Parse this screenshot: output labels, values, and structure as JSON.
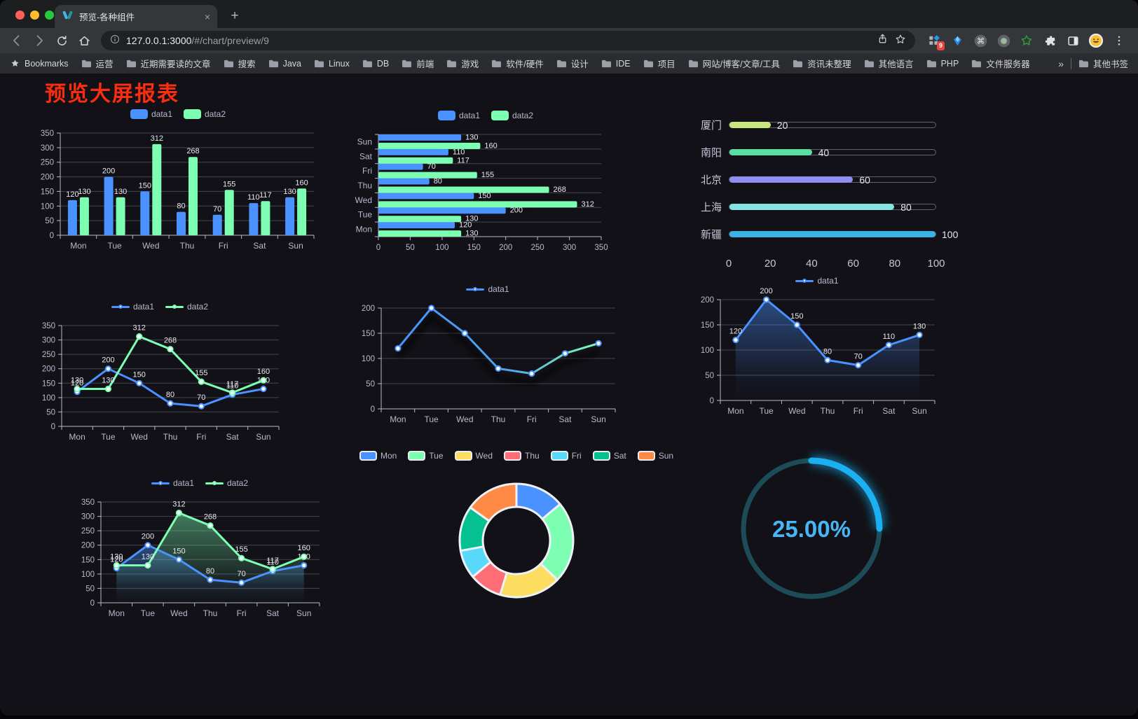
{
  "browser": {
    "traffic_lights": {
      "close": "#ff5f57",
      "minimize": "#febc2e",
      "zoom": "#28c840"
    },
    "tab": {
      "title": "预览-各种组件",
      "close_label": "×",
      "new_tab_label": "+"
    },
    "address": {
      "url_host": "127.0.0.1:3000",
      "url_path": "/#/chart/preview/9"
    },
    "extensions_badge": "9",
    "icons": [
      "back",
      "forward",
      "reload",
      "home",
      "info",
      "share",
      "bookmark-star",
      "extensions-grid",
      "gem",
      "command",
      "screen-record",
      "green-star",
      "puzzle",
      "side-panel",
      "emoji-avatar",
      "menu-dots"
    ],
    "bookmarks_bar": {
      "root_label": "Bookmarks",
      "folders": [
        "运营",
        "近期需要读的文章",
        "搜索",
        "Java",
        "Linux",
        "DB",
        "前端",
        "游戏",
        "软件/硬件",
        "设计",
        "IDE",
        "项目",
        "网站/博客/文章/工具",
        "资讯未整理",
        "其他语言",
        "PHP",
        "文件服务器"
      ],
      "overflow_chevron": "»",
      "other_bookmarks": "其他书签"
    }
  },
  "page": {
    "title": "预览大屏报表",
    "title_color": "#f92d10",
    "background": "#121117"
  },
  "chart_data": [
    {
      "id": "grouped-bar",
      "type": "bar",
      "legend_position": "top",
      "grid": true,
      "value_labels": true,
      "categories": [
        "Mon",
        "Tue",
        "Wed",
        "Thu",
        "Fri",
        "Sat",
        "Sun"
      ],
      "series": [
        {
          "name": "data1",
          "color": "#4992ff",
          "values": [
            120,
            200,
            150,
            80,
            70,
            110,
            130
          ]
        },
        {
          "name": "data2",
          "color": "#7cffb2",
          "values": [
            130,
            130,
            312,
            268,
            155,
            117,
            160
          ]
        }
      ],
      "ylim": [
        0,
        350
      ],
      "yticks": [
        0,
        50,
        100,
        150,
        200,
        250,
        300,
        350
      ]
    },
    {
      "id": "grouped-bar-horizontal",
      "type": "bar-horizontal",
      "legend_position": "top",
      "value_labels": true,
      "categories": [
        "Mon",
        "Tue",
        "Wed",
        "Thu",
        "Fri",
        "Sat",
        "Sun"
      ],
      "series": [
        {
          "name": "data1",
          "color": "#4992ff",
          "values": [
            120,
            200,
            150,
            80,
            70,
            110,
            130
          ]
        },
        {
          "name": "data2",
          "color": "#7cffb2",
          "values": [
            130,
            130,
            312,
            268,
            155,
            117,
            160
          ]
        }
      ],
      "xlim": [
        0,
        350
      ],
      "xticks": [
        0,
        50,
        100,
        150,
        200,
        250,
        300,
        350
      ]
    },
    {
      "id": "city-progress",
      "type": "progress-bars",
      "max": 100,
      "xticks": [
        0,
        20,
        40,
        60,
        80,
        100
      ],
      "rows": [
        {
          "label": "厦门",
          "value": 20,
          "color": "#c8e87f"
        },
        {
          "label": "南阳",
          "value": 40,
          "color": "#58dfa2"
        },
        {
          "label": "北京",
          "value": 60,
          "color": "#918ef1"
        },
        {
          "label": "上海",
          "value": 80,
          "color": "#83e4e2"
        },
        {
          "label": "新疆",
          "value": 100,
          "color": "#3cb1e8"
        }
      ]
    },
    {
      "id": "double-line",
      "type": "line",
      "legend_position": "top",
      "value_labels": true,
      "categories": [
        "Mon",
        "Tue",
        "Wed",
        "Thu",
        "Fri",
        "Sat",
        "Sun"
      ],
      "series": [
        {
          "name": "data1",
          "color": "#4992ff",
          "values": [
            120,
            200,
            150,
            80,
            70,
            110,
            130
          ]
        },
        {
          "name": "data2",
          "color": "#7cffb2",
          "values": [
            130,
            130,
            312,
            268,
            155,
            117,
            160
          ]
        }
      ],
      "ylim": [
        0,
        350
      ],
      "yticks": [
        0,
        50,
        100,
        150,
        200,
        250,
        300,
        350
      ]
    },
    {
      "id": "gradient-line",
      "type": "line-gradient",
      "legend_position": "top",
      "value_labels": false,
      "categories": [
        "Mon",
        "Tue",
        "Wed",
        "Thu",
        "Fri",
        "Sat",
        "Sun"
      ],
      "series": [
        {
          "name": "data1",
          "values": [
            120,
            200,
            150,
            80,
            70,
            110,
            130
          ]
        }
      ],
      "gradient": [
        "#4992ff",
        "#7cffb2"
      ],
      "marker_color": "#4992ff",
      "ylim": [
        0,
        200
      ],
      "yticks": [
        0,
        50,
        100,
        150,
        200
      ]
    },
    {
      "id": "area-line",
      "type": "line",
      "legend_position": "top",
      "value_labels": true,
      "categories": [
        "Mon",
        "Tue",
        "Wed",
        "Thu",
        "Fri",
        "Sat",
        "Sun"
      ],
      "series": [
        {
          "name": "data1",
          "color": "#4992ff",
          "values": [
            120,
            200,
            150,
            80,
            70,
            110,
            130
          ],
          "area": true
        }
      ],
      "ylim": [
        0,
        200
      ],
      "yticks": [
        0,
        50,
        100,
        150,
        200
      ]
    },
    {
      "id": "double-area-line",
      "type": "line",
      "legend_position": "top",
      "value_labels": true,
      "categories": [
        "Mon",
        "Tue",
        "Wed",
        "Thu",
        "Fri",
        "Sat",
        "Sun"
      ],
      "series": [
        {
          "name": "data1",
          "color": "#4992ff",
          "values": [
            120,
            200,
            150,
            80,
            70,
            110,
            130
          ],
          "area": true
        },
        {
          "name": "data2",
          "color": "#7cffb2",
          "values": [
            130,
            130,
            312,
            268,
            155,
            117,
            160
          ],
          "area": true
        }
      ],
      "ylim": [
        0,
        350
      ],
      "yticks": [
        0,
        50,
        100,
        150,
        200,
        250,
        300,
        350
      ]
    },
    {
      "id": "week-donut",
      "type": "pie",
      "legend_position": "top",
      "categories": [
        "Mon",
        "Tue",
        "Wed",
        "Thu",
        "Fri",
        "Sat",
        "Sun"
      ],
      "values": [
        120,
        200,
        150,
        80,
        70,
        110,
        130
      ],
      "colors": [
        "#4992ff",
        "#7cffb2",
        "#fddd60",
        "#ff6e76",
        "#58d9f9",
        "#05c091",
        "#ff8a45"
      ],
      "inner_radius_ratio": 0.59,
      "border_color": "#eef1f5"
    },
    {
      "id": "percent-gauge",
      "type": "gauge",
      "value": 25,
      "max": 100,
      "label": "25.00%",
      "color": "#1ab0f2",
      "track_color": "#1d4c58",
      "text_color": "#47b6f7"
    }
  ]
}
